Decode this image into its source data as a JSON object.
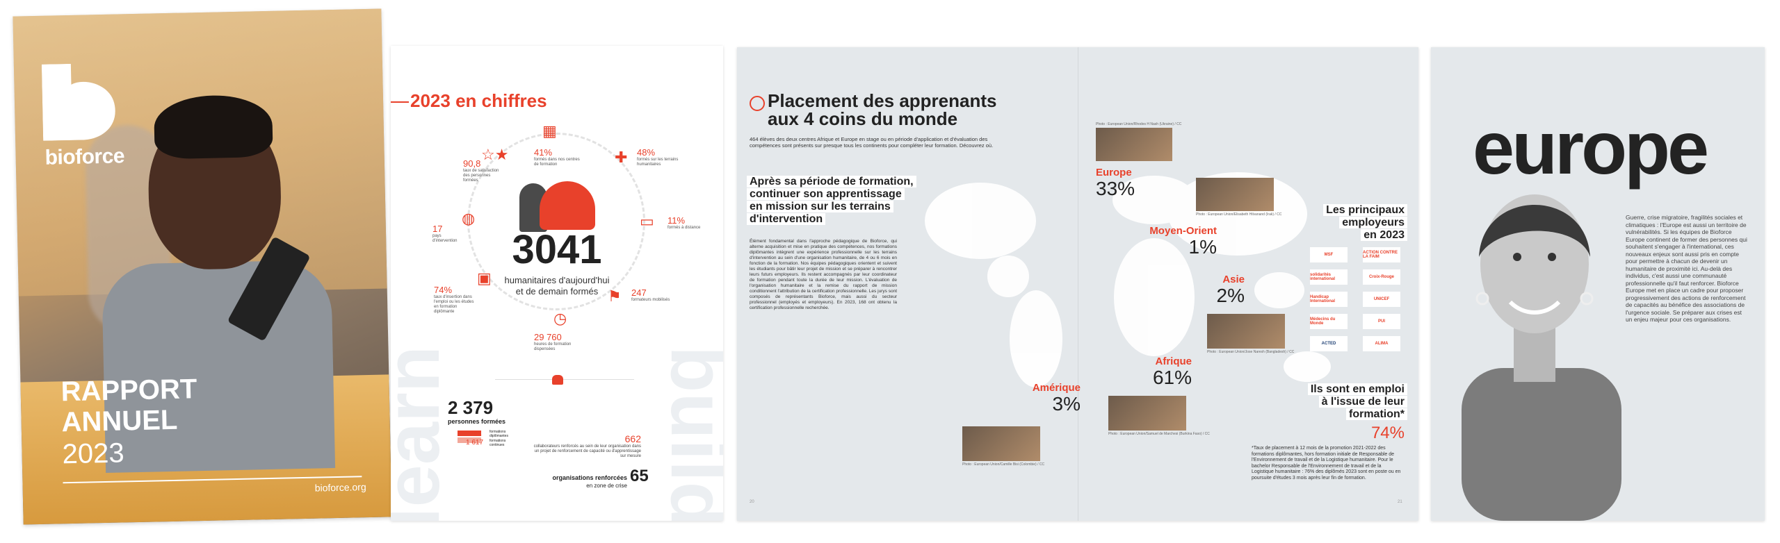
{
  "cover": {
    "brand": "bioforce",
    "title_line1": "RAPPORT",
    "title_line2": "ANNUEL",
    "year": "2023",
    "url": "bioforce.org"
  },
  "chiffres": {
    "title": "2023 en chiffres",
    "big_number": "3041",
    "big_caption_1": "humanitaires d'aujourd'hui",
    "big_caption_2": "et de demain formés",
    "stats": [
      {
        "value": "41%",
        "label": "formés dans nos centres de formation"
      },
      {
        "value": "48%",
        "label": "formés sur les terrains humanitaires"
      },
      {
        "value": "11%",
        "label": "formés à distance"
      },
      {
        "value": "247",
        "label": "formateurs mobilisés"
      },
      {
        "value": "29 760",
        "label": "heures de formation dispensées"
      },
      {
        "value": "74%",
        "label": "taux d'insertion dans l'emploi ou les études en formation diplômante"
      },
      {
        "value": "17",
        "label": "pays d'intervention"
      },
      {
        "value": "90,8",
        "label": "taux de satisfaction des personnes formées"
      }
    ],
    "side_word_left": "learn",
    "side_word_right": "build",
    "trained_total": "2 379",
    "trained_label": "personnes formées",
    "trained_diplome_value": "762",
    "trained_diplome_label": "formations diplômantes",
    "trained_continue_value": "1 617",
    "trained_continue_label": "formations continues",
    "collab_value": "662",
    "collab_label": "collaborateurs renforcés au sein de leur organisation dans un projet de renforcement de capacité ou d'apprentissage sur mesure",
    "orgs_value": "65",
    "orgs_label": "organisations renforcées",
    "orgs_sub": "en zone de crise"
  },
  "spread": {
    "title_1": "Placement des apprenants",
    "title_2": "aux 4 coins du monde",
    "intro": "464 élèves des deux centres Afrique et Europe en stage ou en période d'application et d'évaluation des compétences sont présents sur presque tous les continents pour compléter leur formation. Découvrez où.",
    "subtitle_1": "Après sa période de formation,",
    "subtitle_2": "continuer son apprentissage",
    "subtitle_3": "en mission sur les terrains",
    "subtitle_4": "d'intervention",
    "body": "Élément fondamental dans l'approche pédagogique de Bioforce, qui alterne acquisition et mise en pratique des compétences, nos formations diplômantes intègrent une expérience professionnelle sur les terrains d'intervention au sein d'une organisation humanitaire, de 4 ou 6 mois en fonction de la formation. Nos équipes pédagogiques orientent et suivent les étudiants pour bâtir leur projet de mission et se préparer à rencontrer leurs futurs employeurs. Ils restent accompagnés par leur coordinateur de formation pendant toute la durée de leur mission. L'évaluation de l'organisation humanitaire et la remise du rapport de mission conditionnent l'attribution de la certification professionnelle. Les jurys sont composés de représentants Bioforce, mais aussi du secteur professionnel (employés et employeurs). En 2023, 168 ont obtenu la certification professionnelle recherchée.",
    "regions": [
      {
        "name": "Europe",
        "pct": "33%"
      },
      {
        "name": "Moyen-Orient",
        "pct": "1%"
      },
      {
        "name": "Asie",
        "pct": "2%"
      },
      {
        "name": "Afrique",
        "pct": "61%"
      },
      {
        "name": "Amérique",
        "pct": "3%"
      }
    ],
    "captions": {
      "europe": "Photo : European Union/Rhodes H Nash (Ukraine) / CC",
      "moyen_orient": "Photo : European Union/Elisabeth Hilvanand (Irak) / CC",
      "asie": "Photo : European Union/Jose Naresh (Bangladesh) / CC",
      "afrique": "Photo : European Union/Samuel de Marchesi (Burkina Faso) / CC",
      "amerique": "Photo : European Union/Camille Bisi (Colombie) / CC"
    },
    "employers_1": "Les principaux",
    "employers_2": "employeurs",
    "employers_3": "en 2023",
    "employer_logos": [
      "MSF",
      "ACTION CONTRE LA FAIM",
      "solidarités international",
      "Croix-Rouge",
      "Handicap International",
      "UNICEF",
      "Médecins du Monde",
      "PUI",
      "ACTED",
      "ALIMA"
    ],
    "emploi_1": "Ils sont en emploi",
    "emploi_2": "à l'issue de leur",
    "emploi_3": "formation*",
    "emploi_pct": "74%",
    "footnote": "*Taux de placement à 12 mois de la promotion 2021-2022 des formations diplômantes, hors formation initiale de Responsable de l'Environnement de travail et de la Logistique humanitaire. Pour le bachelor Responsable de l'Environnement de travail et de la Logistique humanitaire : 76% des diplômés 2023 sont en poste ou en poursuite d'études 3 mois après leur fin de formation.",
    "page_left": "20",
    "page_right": "21"
  },
  "europe": {
    "word": "europe",
    "text": "Guerre, crise migratoire, fragilités sociales et climatiques : l'Europe est aussi un territoire de vulnérabilités. Si les équipes de Bioforce Europe continent de former des personnes qui souhaitent s'engager à l'international, ces nouveaux enjeux sont aussi pris en compte pour permettre à chacun de devenir un humanitaire de proximité ici. Au-delà des individus, c'est aussi une communauté professionnelle qu'il faut renforcer. Bioforce Europe met en place un cadre pour proposer progressivement des actions de renforcement de capacités au bénéfice des associations de l'urgence sociale. Se préparer aux crises est un enjeu majeur pour ces organisations."
  },
  "colors": {
    "accent": "#e8412b",
    "spread_bg": "#e4e8eb",
    "ink": "#222222"
  }
}
